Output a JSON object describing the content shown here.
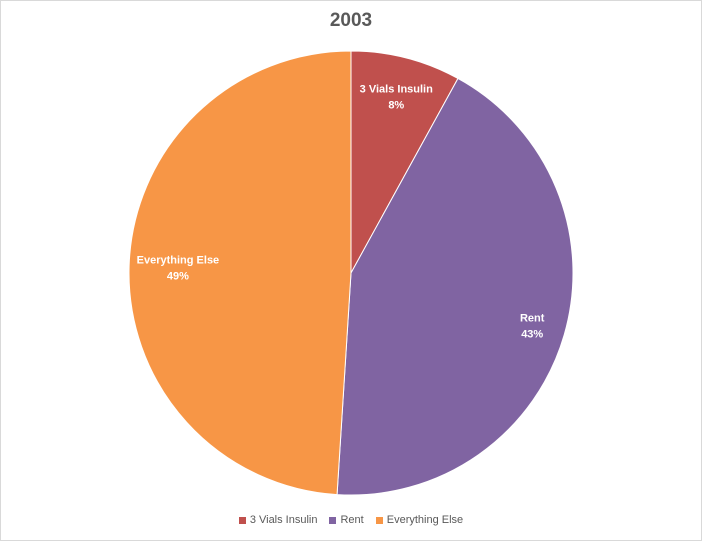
{
  "chart_data": {
    "type": "pie",
    "title": "2003",
    "categories": [
      "3 Vials Insulin",
      "Rent",
      "Everything Else"
    ],
    "values": [
      8,
      43,
      49
    ],
    "data_labels": [
      "8%",
      "43%",
      "49%"
    ],
    "colors": [
      "#c0504d",
      "#8064a2",
      "#f79646"
    ],
    "legend_position": "bottom"
  }
}
